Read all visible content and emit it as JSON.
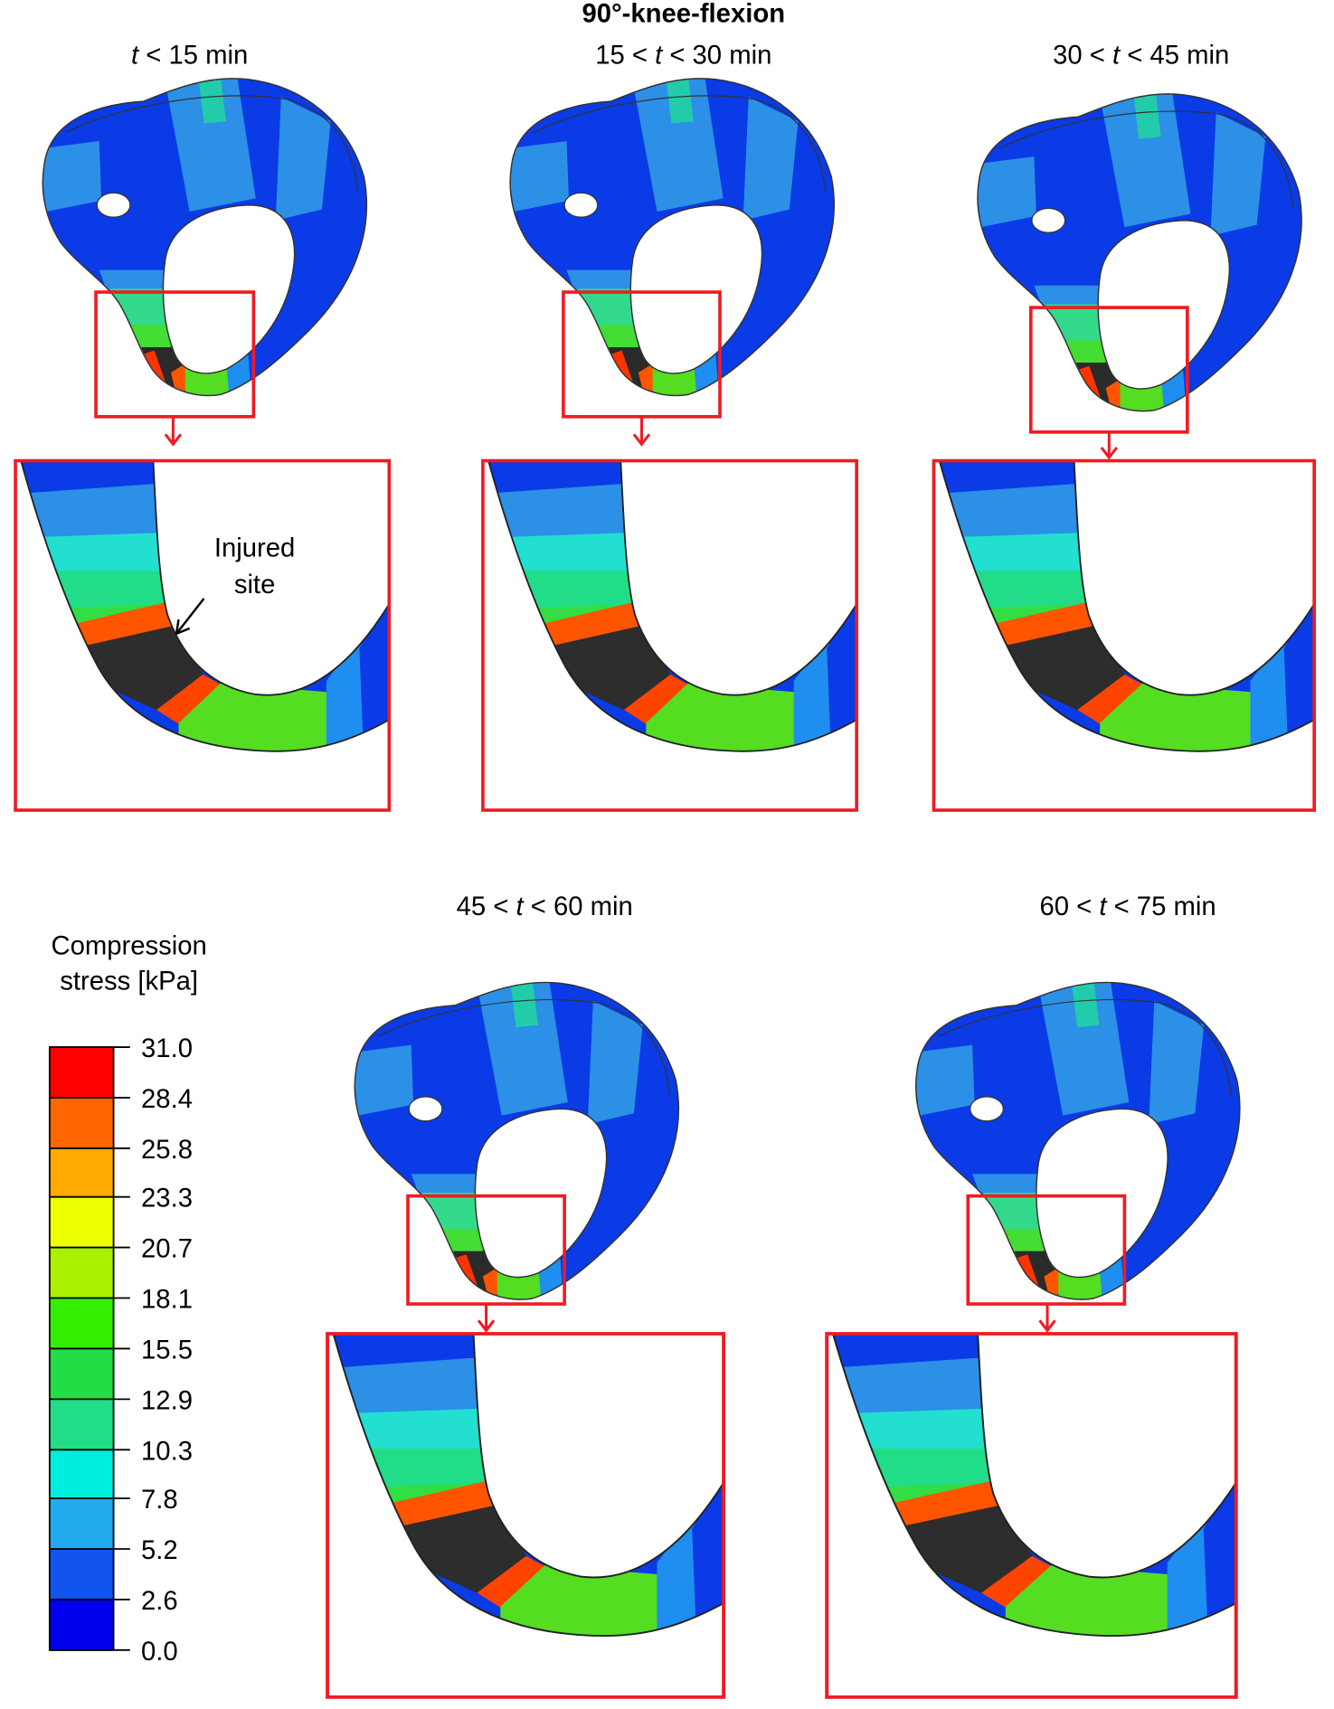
{
  "title": "90°-knee-flexion",
  "panels": [
    {
      "label": {
        "var": "t",
        "post": " < 15 min"
      }
    },
    {
      "label": {
        "pre": "15 < ",
        "var": "t",
        "post": " < 30 min"
      }
    },
    {
      "label": {
        "pre": "30 < ",
        "var": "t",
        "post": " < 45 min"
      }
    },
    {
      "label": {
        "pre": "45 < ",
        "var": "t",
        "post": " < 60 min"
      }
    },
    {
      "label": {
        "pre": "60 < ",
        "var": "t",
        "post": " < 75 min"
      }
    }
  ],
  "annotation": [
    "Injured",
    "site"
  ],
  "colorbar": {
    "title": [
      "Compression",
      "stress [kPa]"
    ],
    "ticks": [
      {
        "value": 0,
        "label": "0.0"
      },
      2.6,
      5.2,
      7.8,
      10.3,
      12.9,
      15.5,
      18.1,
      20.7,
      23.3,
      25.8,
      28.4,
      {
        "value": 31,
        "label": "31.0"
      }
    ],
    "colors": [
      "#0000ee",
      "#1155ee",
      "#22aaee",
      "#00eedd",
      "#22dd88",
      "#22dd44",
      "#33ee00",
      "#aaee00",
      "#eeff00",
      "#ffaa00",
      "#ff6600",
      "#ff0000"
    ]
  }
}
